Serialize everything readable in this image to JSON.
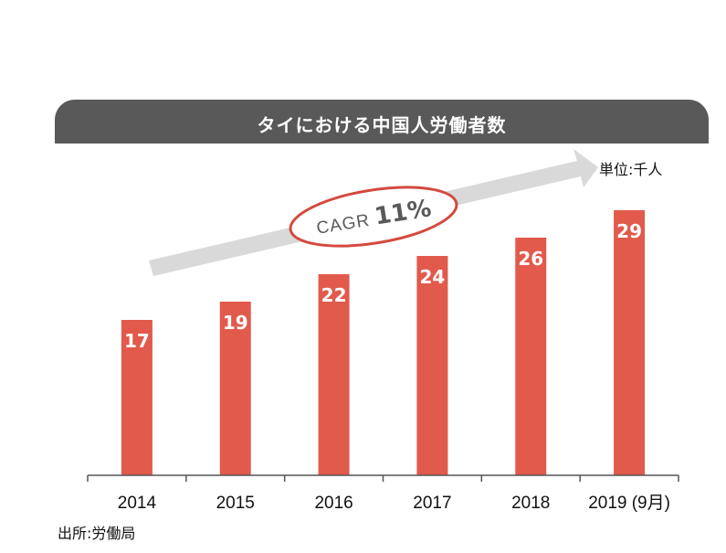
{
  "title": "タイにおける中国人労働者数",
  "unit": "単位:千人",
  "source": "出所:労働局",
  "cagr_annotation": {
    "label": "CAGR",
    "value": "11%"
  },
  "colors": {
    "bar": "#e15a4b",
    "title_bg": "#595959",
    "arrow": "#d9d9d9",
    "ellipse_stroke": "#d44a3e",
    "axis": "#555555"
  },
  "chart_data": {
    "type": "bar",
    "title": "タイにおける中国人労働者数",
    "categories": [
      "2014",
      "2015",
      "2016",
      "2017",
      "2018",
      "2019 (9月)"
    ],
    "values": [
      17,
      19,
      22,
      24,
      26,
      29
    ],
    "ylim": [
      0,
      37
    ],
    "unit": "単位:千人",
    "data_labels": true,
    "grid": false,
    "legend": "none"
  }
}
